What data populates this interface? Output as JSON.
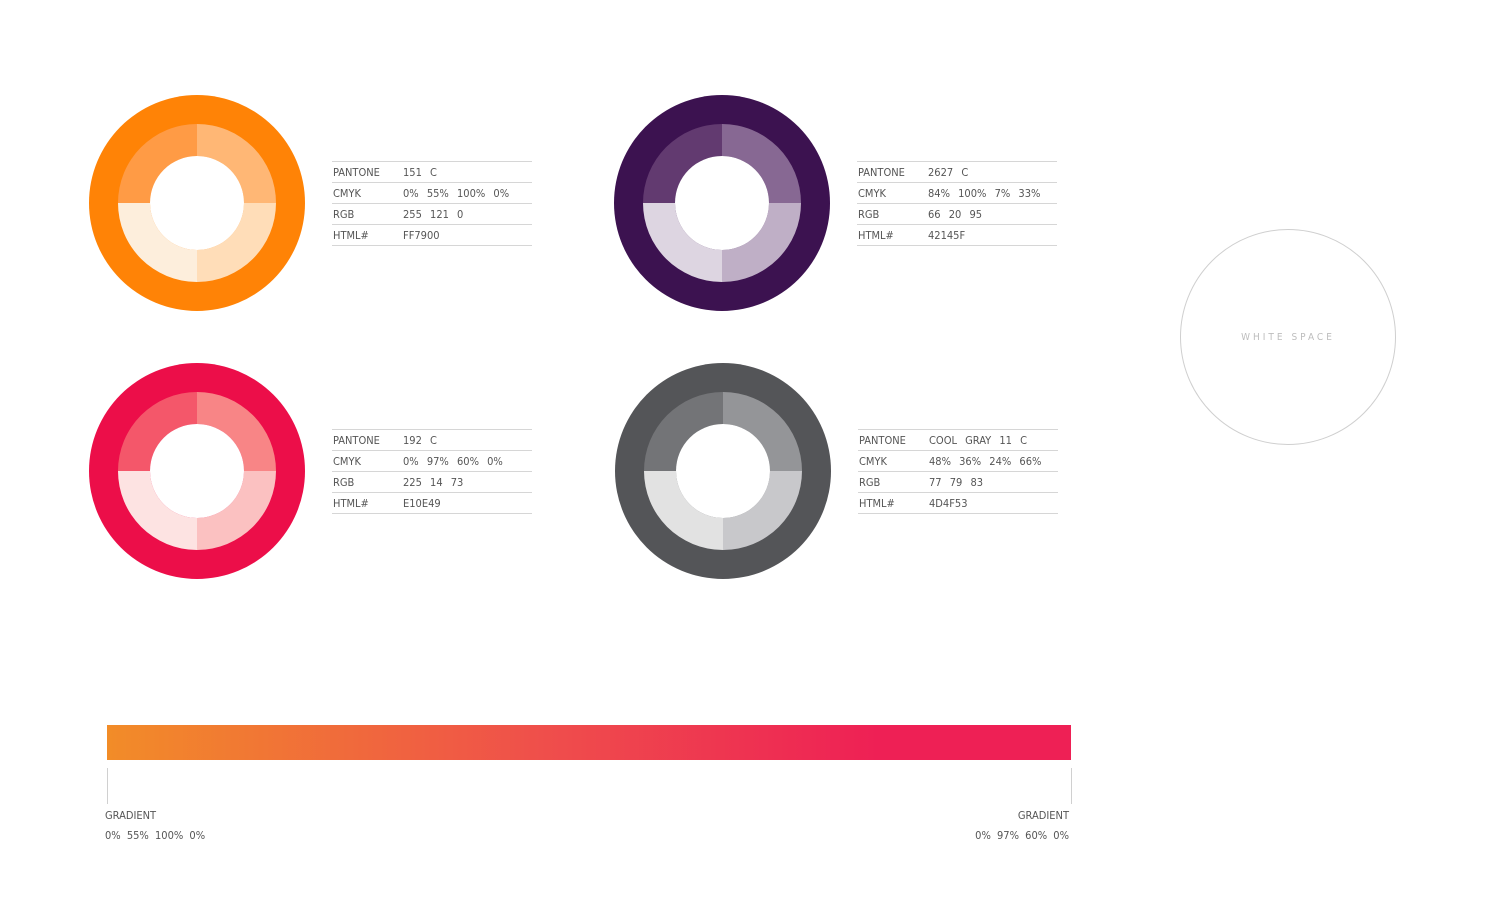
{
  "swatches": [
    {
      "id": "orange",
      "pantone": "151 C",
      "cmyk": "0% 55% 100% 0%",
      "rgb": "255 121 0",
      "html": "FF7900",
      "colors": {
        "outer": "#FF8306",
        "tl": "#FF9B45",
        "tr": "#FFB775",
        "br": "#FFDDB8",
        "bl": "#FDEEDC"
      }
    },
    {
      "id": "purple",
      "pantone": "2627 C",
      "cmyk": "84% 100% 7% 33%",
      "rgb": "66 20 95",
      "html": "42145F",
      "colors": {
        "outer": "#3C1250",
        "tl": "#623A70",
        "tr": "#876893",
        "br": "#BFAFC6",
        "bl": "#DDD5E1"
      }
    },
    {
      "id": "red",
      "pantone": "192 C",
      "cmyk": "0% 97% 60% 0%",
      "rgb": "225 14 73",
      "html": "E10E49",
      "colors": {
        "outer": "#EC0E49",
        "tl": "#F4576A",
        "tr": "#F88586",
        "br": "#FBC1C1",
        "bl": "#FDE3E2"
      }
    },
    {
      "id": "gray",
      "pantone": "COOL GRAY 11 C",
      "cmyk": "48% 36% 24% 66%",
      "rgb": "77 79 83",
      "html": "4D4F53",
      "colors": {
        "outer": "#545558",
        "tl": "#737477",
        "tr": "#949598",
        "br": "#C8C8CB",
        "bl": "#E2E2E2"
      }
    }
  ],
  "labels": {
    "pantone": "PANTONE",
    "cmyk": "CMYK",
    "rgb": "RGB",
    "html": "HTML#"
  },
  "white_space": "WHITE SPACE",
  "gradient": {
    "start_color": "#F28C28",
    "end_color": "#EE2055",
    "left": {
      "label": "GRADIENT",
      "value": "0% 55% 100% 0%"
    },
    "right": {
      "label": "GRADIENT",
      "value": "0% 97% 60% 0%"
    }
  }
}
